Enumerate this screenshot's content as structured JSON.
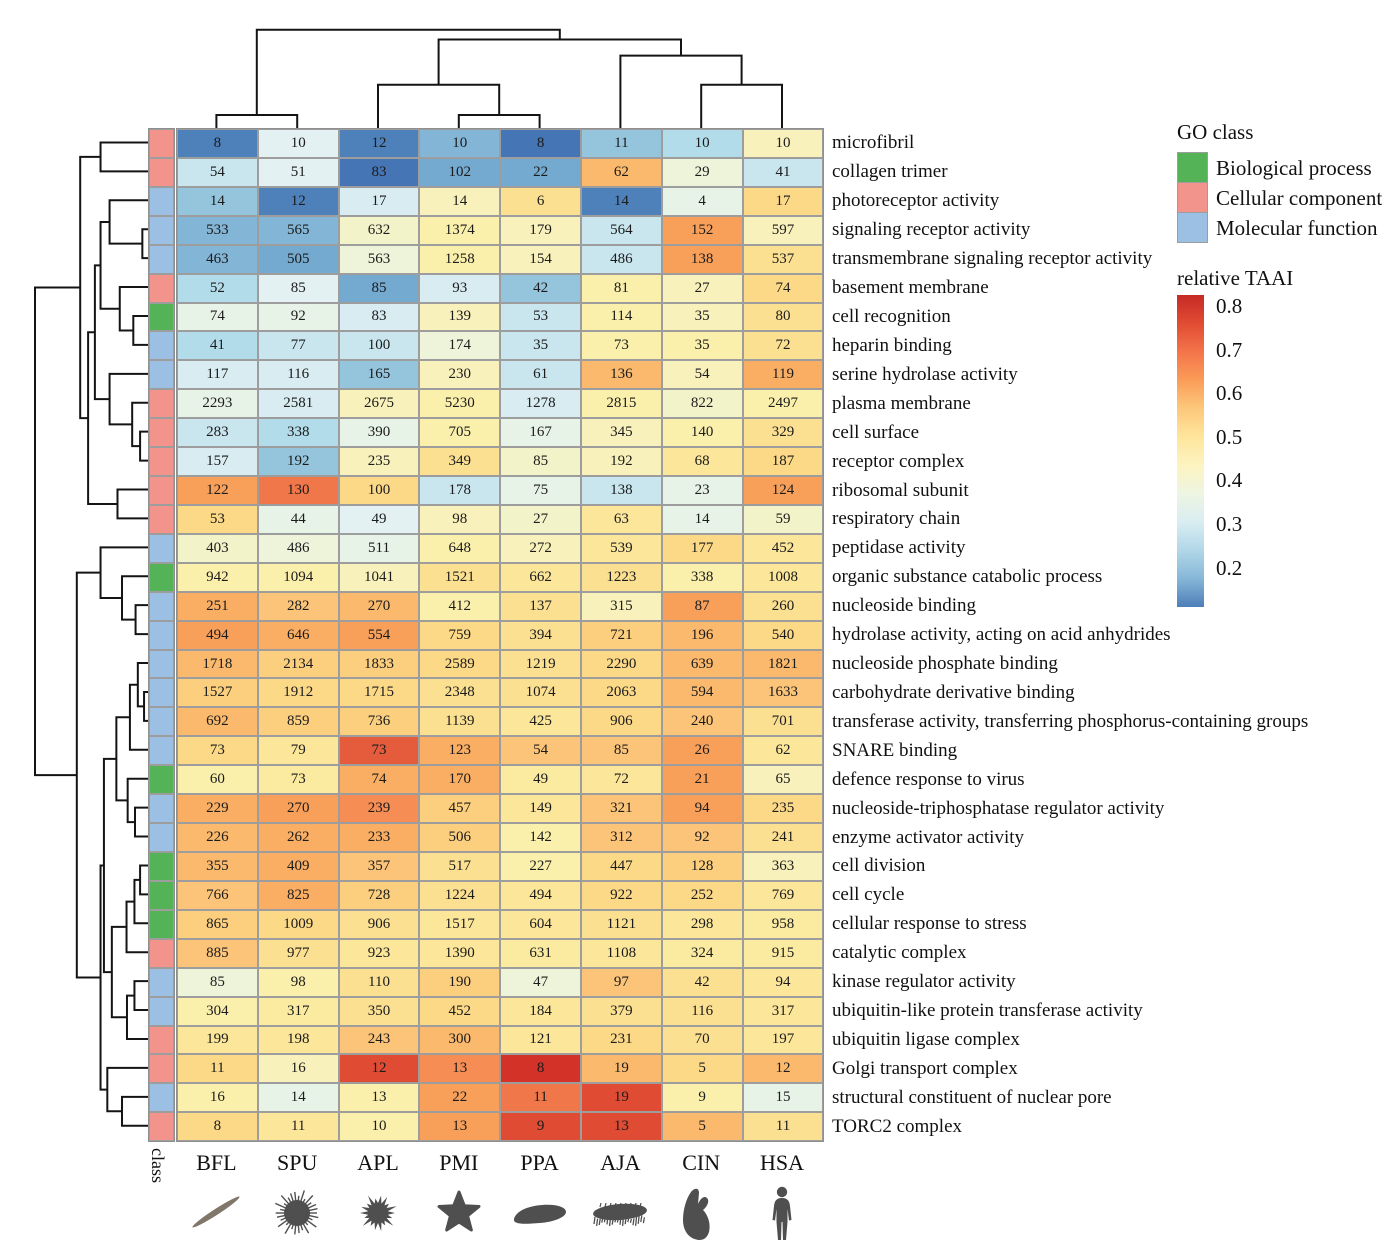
{
  "figure": {
    "background": "#ffffff"
  },
  "go_class_legend": {
    "title": "GO class",
    "items": [
      {
        "key": "BP",
        "label": "Biological process",
        "color": "#54b257"
      },
      {
        "key": "CC",
        "label": "Cellular component",
        "color": "#f2938c"
      },
      {
        "key": "MF",
        "label": "Molecular function",
        "color": "#9cc0e4"
      }
    ]
  },
  "colorbar": {
    "title": "relative TAAI",
    "ticks": [
      0.8,
      0.7,
      0.6,
      0.5,
      0.4,
      0.3,
      0.2
    ],
    "top_value": 0.825,
    "bottom_value": 0.11,
    "gradient": [
      "#c62a25",
      "#e04c33",
      "#f4744a",
      "#fa9c58",
      "#fdc87b",
      "#fee59c",
      "#fdf3c0",
      "#eef5e2",
      "#d9edf2",
      "#b1d7e8",
      "#86b7d8",
      "#4c7eb8"
    ]
  },
  "class_strip_label": "class",
  "chart_data": {
    "type": "heatmap",
    "columns": [
      "BFL",
      "SPU",
      "APL",
      "PMI",
      "PPA",
      "AJA",
      "CIN",
      "HSA"
    ],
    "column_silhouettes": [
      "lancelet",
      "sea-urchin",
      "crown-of-thorns-starfish",
      "starfish",
      "sea-cucumber",
      "spiky-sea-cucumber",
      "tunicate",
      "human"
    ],
    "rows": [
      {
        "label": "microfibril",
        "class": "CC",
        "values": [
          8,
          10,
          12,
          10,
          8,
          11,
          10,
          10
        ],
        "colors": [
          "#4e80ba",
          "#e4f1f3",
          "#4e80ba",
          "#83b5d6",
          "#4575b4",
          "#95c4dd",
          "#b3dcea",
          "#f9f1bb"
        ]
      },
      {
        "label": "collagen trimer",
        "class": "CC",
        "values": [
          54,
          51,
          83,
          102,
          22,
          62,
          29,
          41
        ],
        "colors": [
          "#c9e6ef",
          "#e4f1f3",
          "#4575b4",
          "#74a9d0",
          "#74a9d0",
          "#fab96c",
          "#edf4da",
          "#c9e6ef"
        ]
      },
      {
        "label": "photoreceptor activity",
        "class": "MF",
        "values": [
          14,
          12,
          17,
          14,
          6,
          14,
          4,
          17
        ],
        "colors": [
          "#95c4dd",
          "#4e80ba",
          "#d8ecf2",
          "#f9f1bb",
          "#fbe092",
          "#4e80ba",
          "#e7f3e6",
          "#fcd986"
        ]
      },
      {
        "label": "signaling receptor activity",
        "class": "MF",
        "values": [
          533,
          565,
          632,
          1374,
          179,
          564,
          152,
          597
        ],
        "colors": [
          "#83b5d6",
          "#83b5d6",
          "#f3f3ca",
          "#faf0ac",
          "#f9f1bb",
          "#c9e6ef",
          "#f8a05a",
          "#f9f1bb"
        ]
      },
      {
        "label": "transmembrane signaling receptor activity",
        "class": "MF",
        "values": [
          463,
          505,
          563,
          1258,
          154,
          486,
          138,
          537
        ],
        "colors": [
          "#83b5d6",
          "#74a9d0",
          "#edf4da",
          "#faf0ac",
          "#f9f1bb",
          "#c9e6ef",
          "#f8a05a",
          "#fbe092"
        ]
      },
      {
        "label": "basement membrane",
        "class": "CC",
        "values": [
          52,
          85,
          85,
          93,
          42,
          81,
          27,
          74
        ],
        "colors": [
          "#b3dcea",
          "#e4f1f3",
          "#74a9d0",
          "#d8ecf2",
          "#95c4dd",
          "#faf0ac",
          "#f9f1bb",
          "#fcd986"
        ]
      },
      {
        "label": "cell recognition",
        "class": "BP",
        "values": [
          74,
          92,
          83,
          139,
          53,
          114,
          35,
          80
        ],
        "colors": [
          "#e7f3e6",
          "#e7f3e6",
          "#d8ecf2",
          "#f9f1bb",
          "#c9e6ef",
          "#faf0ac",
          "#f9f1bb",
          "#fbe092"
        ]
      },
      {
        "label": "heparin binding",
        "class": "MF",
        "values": [
          41,
          77,
          100,
          174,
          35,
          73,
          35,
          72
        ],
        "colors": [
          "#b3dcea",
          "#c9e6ef",
          "#c9e6ef",
          "#edf4da",
          "#c9e6ef",
          "#faf0ac",
          "#faf0ac",
          "#fbe092"
        ]
      },
      {
        "label": "serine hydrolase activity",
        "class": "MF",
        "values": [
          117,
          116,
          165,
          230,
          61,
          136,
          54,
          119
        ],
        "colors": [
          "#d8ecf2",
          "#d8ecf2",
          "#95c4dd",
          "#f9f1bb",
          "#c9e6ef",
          "#fab96c",
          "#f9f1bb",
          "#f9ae63"
        ]
      },
      {
        "label": "plasma membrane",
        "class": "CC",
        "values": [
          2293,
          2581,
          2675,
          5230,
          1278,
          2815,
          822,
          2497
        ],
        "colors": [
          "#e7f3e6",
          "#d8ecf2",
          "#f9f1bb",
          "#faf0ac",
          "#d8ecf2",
          "#faf0ac",
          "#f3f3ca",
          "#faf0ac"
        ]
      },
      {
        "label": "cell surface",
        "class": "CC",
        "values": [
          283,
          338,
          390,
          705,
          167,
          345,
          140,
          329
        ],
        "colors": [
          "#c9e6ef",
          "#b3dcea",
          "#e7f3e6",
          "#faf0ac",
          "#e7f3e6",
          "#f9f1bb",
          "#faf0ac",
          "#fbe092"
        ]
      },
      {
        "label": "receptor complex",
        "class": "CC",
        "values": [
          157,
          192,
          235,
          349,
          85,
          192,
          68,
          187
        ],
        "colors": [
          "#d8ecf2",
          "#95c4dd",
          "#f9f1bb",
          "#fbe092",
          "#f3f3ca",
          "#f9f1bb",
          "#fbe69a",
          "#fcd986"
        ]
      },
      {
        "label": "ribosomal subunit",
        "class": "CC",
        "values": [
          122,
          130,
          100,
          178,
          75,
          138,
          23,
          124
        ],
        "colors": [
          "#f8a05a",
          "#f0774a",
          "#fcd986",
          "#c9e6ef",
          "#e7f3e6",
          "#c9e6ef",
          "#e7f3e6",
          "#f8a05a"
        ]
      },
      {
        "label": "respiratory chain",
        "class": "CC",
        "values": [
          53,
          44,
          49,
          98,
          27,
          63,
          14,
          59
        ],
        "colors": [
          "#fcd986",
          "#e7f3e6",
          "#e4f1f3",
          "#f9f1bb",
          "#f3f3ca",
          "#fbe69a",
          "#e7f3e6",
          "#f3f3ca"
        ]
      },
      {
        "label": "peptidase activity",
        "class": "MF",
        "values": [
          403,
          486,
          511,
          648,
          272,
          539,
          177,
          452
        ],
        "colors": [
          "#f3f3ca",
          "#edf4da",
          "#e7f3e6",
          "#faf0ac",
          "#f9f1bb",
          "#fbe69a",
          "#fcd986",
          "#fbe69a"
        ]
      },
      {
        "label": "organic substance catabolic process",
        "class": "BP",
        "values": [
          942,
          1094,
          1041,
          1521,
          662,
          1223,
          338,
          1008
        ],
        "colors": [
          "#faf0ac",
          "#faf0ac",
          "#f9f1bb",
          "#fbe092",
          "#fbe69a",
          "#fbe092",
          "#faf0ac",
          "#fbe69a"
        ]
      },
      {
        "label": "nucleoside binding",
        "class": "MF",
        "values": [
          251,
          282,
          270,
          412,
          137,
          315,
          87,
          260
        ],
        "colors": [
          "#f9ae63",
          "#fcc478",
          "#fab96c",
          "#faf0ac",
          "#fbe092",
          "#f9f1bb",
          "#f8a05a",
          "#fbe092"
        ]
      },
      {
        "label": "hydrolase activity, acting on acid anhydrides",
        "class": "MF",
        "values": [
          494,
          646,
          554,
          759,
          394,
          721,
          196,
          540
        ],
        "colors": [
          "#f8a05a",
          "#f9ae63",
          "#f8a05a",
          "#fcd986",
          "#fbe092",
          "#fccf7e",
          "#fab96c",
          "#fcd986"
        ]
      },
      {
        "label": "nucleoside phosphate binding",
        "class": "MF",
        "values": [
          1718,
          2134,
          1833,
          2589,
          1219,
          2290,
          639,
          1821
        ],
        "colors": [
          "#fab96c",
          "#fccf7e",
          "#fccf7e",
          "#fcd986",
          "#fbe092",
          "#fcd986",
          "#fab96c",
          "#fab96c"
        ]
      },
      {
        "label": "carbohydrate derivative binding",
        "class": "MF",
        "values": [
          1527,
          1912,
          1715,
          2348,
          1074,
          2063,
          594,
          1633
        ],
        "colors": [
          "#fccf7e",
          "#fcd986",
          "#fcd986",
          "#fbe092",
          "#fbe092",
          "#fcd986",
          "#fab96c",
          "#fcc478"
        ]
      },
      {
        "label": "transferase activity, transferring phosphorus-containing groups",
        "class": "MF",
        "values": [
          692,
          859,
          736,
          1139,
          425,
          906,
          240,
          701
        ],
        "colors": [
          "#fab96c",
          "#fccf7e",
          "#fccf7e",
          "#fbe092",
          "#fbe69a",
          "#fcd986",
          "#fcc478",
          "#fbe092"
        ]
      },
      {
        "label": "SNARE binding",
        "class": "MF",
        "values": [
          73,
          79,
          73,
          123,
          54,
          85,
          26,
          62
        ],
        "colors": [
          "#fcd986",
          "#fbe69a",
          "#e55c3c",
          "#f9ae63",
          "#fcc478",
          "#fcc478",
          "#f8a05a",
          "#fbe69a"
        ]
      },
      {
        "label": "defence response to virus",
        "class": "BP",
        "values": [
          60,
          73,
          74,
          170,
          49,
          72,
          21,
          65
        ],
        "colors": [
          "#faf0ac",
          "#fbeba1",
          "#f9ae63",
          "#f9ae63",
          "#fbeba1",
          "#fbe69a",
          "#f8a05a",
          "#f9f1bb"
        ]
      },
      {
        "label": "nucleoside-triphosphatase regulator activity",
        "class": "MF",
        "values": [
          229,
          270,
          239,
          457,
          149,
          321,
          94,
          235
        ],
        "colors": [
          "#f9ae63",
          "#f8a05a",
          "#f58d54",
          "#fccf7e",
          "#fbe69a",
          "#fcc478",
          "#f8a05a",
          "#fcd986"
        ]
      },
      {
        "label": "enzyme activator activity",
        "class": "MF",
        "values": [
          226,
          262,
          233,
          506,
          142,
          312,
          92,
          241
        ],
        "colors": [
          "#fab96c",
          "#f9ae63",
          "#f9ae63",
          "#fccf7e",
          "#faf0ac",
          "#fcc478",
          "#fcc478",
          "#fbe092"
        ]
      },
      {
        "label": "cell division",
        "class": "BP",
        "values": [
          355,
          409,
          357,
          517,
          227,
          447,
          128,
          363
        ],
        "colors": [
          "#fab96c",
          "#f9ae63",
          "#fcc478",
          "#fbe092",
          "#faf0ac",
          "#fcd986",
          "#fccf7e",
          "#f9f1bb"
        ]
      },
      {
        "label": "cell cycle",
        "class": "BP",
        "values": [
          766,
          825,
          728,
          1224,
          494,
          922,
          252,
          769
        ],
        "colors": [
          "#fcc478",
          "#f9ae63",
          "#fccf7e",
          "#fbe092",
          "#fbe69a",
          "#fcd986",
          "#fcd986",
          "#fbe69a"
        ]
      },
      {
        "label": "cellular response to stress",
        "class": "BP",
        "values": [
          865,
          1009,
          906,
          1517,
          604,
          1121,
          298,
          958
        ],
        "colors": [
          "#fccf7e",
          "#fcd986",
          "#fbe092",
          "#fbe69a",
          "#fbe69a",
          "#fbe092",
          "#fbe69a",
          "#fbeba1"
        ]
      },
      {
        "label": "catalytic complex",
        "class": "CC",
        "values": [
          885,
          977,
          923,
          1390,
          631,
          1108,
          324,
          915
        ],
        "colors": [
          "#fcc478",
          "#fbe092",
          "#fbe69a",
          "#fbe69a",
          "#fbeba1",
          "#fbe69a",
          "#fbeba1",
          "#fbeba1"
        ]
      },
      {
        "label": "kinase regulator activity",
        "class": "MF",
        "values": [
          85,
          98,
          110,
          190,
          47,
          97,
          42,
          94
        ],
        "colors": [
          "#edf4da",
          "#faf0ac",
          "#fbe092",
          "#fccf7e",
          "#edf4da",
          "#fcc478",
          "#fbe092",
          "#fbe69a"
        ]
      },
      {
        "label": "ubiquitin-like protein transferase activity",
        "class": "MF",
        "values": [
          304,
          317,
          350,
          452,
          184,
          379,
          116,
          317
        ],
        "colors": [
          "#faf0ac",
          "#fbeba1",
          "#fbe092",
          "#fcd986",
          "#fbe69a",
          "#fbe092",
          "#fbe092",
          "#fbe69a"
        ]
      },
      {
        "label": "ubiquitin ligase complex",
        "class": "CC",
        "values": [
          199,
          198,
          243,
          300,
          121,
          231,
          70,
          197
        ],
        "colors": [
          "#fbe69a",
          "#fbe69a",
          "#fcc478",
          "#fab96c",
          "#fbe69a",
          "#fcd986",
          "#fbe092",
          "#fbe69a"
        ]
      },
      {
        "label": "Golgi transport complex",
        "class": "CC",
        "values": [
          11,
          16,
          12,
          13,
          8,
          19,
          5,
          12
        ],
        "colors": [
          "#fcd986",
          "#f9f1bb",
          "#e04b34",
          "#f58d54",
          "#d23227",
          "#fab96c",
          "#fcd986",
          "#fab96c"
        ]
      },
      {
        "label": "structural constituent of nuclear pore",
        "class": "MF",
        "values": [
          16,
          14,
          13,
          22,
          11,
          19,
          9,
          15
        ],
        "colors": [
          "#faf0ac",
          "#e7f3e6",
          "#faf0ac",
          "#f8a05a",
          "#f0774a",
          "#e04b34",
          "#faf0ac",
          "#e7f3e6"
        ]
      },
      {
        "label": "TORC2 complex",
        "class": "CC",
        "values": [
          8,
          11,
          10,
          13,
          9,
          13,
          5,
          11
        ],
        "colors": [
          "#fcd986",
          "#fbe69a",
          "#faf0ac",
          "#f8a05a",
          "#e04b34",
          "#e04b34",
          "#fab96c",
          "#fbe092"
        ]
      }
    ],
    "col_dendrogram": [
      [
        "BFL",
        "SPU",
        0.12
      ],
      [
        "PMI",
        "PPA",
        0.12
      ],
      [
        "APL",
        "C1",
        0.4
      ],
      [
        "CIN",
        "HSA",
        0.4
      ],
      [
        "AJA",
        "C3",
        0.67
      ],
      [
        "C2",
        "C4",
        0.82
      ],
      [
        "C0",
        "C5",
        0.91
      ]
    ],
    "row_dendrogram": [
      [
        "L0",
        "L1",
        0.42
      ],
      [
        "L3",
        "L4",
        0.05
      ],
      [
        "L2",
        "M1",
        0.34
      ],
      [
        "L6",
        "L7",
        0.13
      ],
      [
        "L5",
        "M3",
        0.25
      ],
      [
        "M2",
        "M4",
        0.42
      ],
      [
        "L10",
        "L11",
        0.07
      ],
      [
        "L9",
        "M6",
        0.14
      ],
      [
        "L8",
        "M7",
        0.34
      ],
      [
        "M5",
        "M8",
        0.47
      ],
      [
        "L12",
        "L13",
        0.27
      ],
      [
        "M9",
        "M10",
        0.53
      ],
      [
        "M0",
        "M11",
        0.6
      ],
      [
        "L16",
        "L17",
        0.11
      ],
      [
        "L15",
        "M13",
        0.23
      ],
      [
        "L14",
        "M14",
        0.42
      ],
      [
        "L19",
        "L20",
        0.035
      ],
      [
        "L18",
        "M16",
        0.09
      ],
      [
        "M17",
        "L21",
        0.16
      ],
      [
        "L23",
        "L24",
        0.115
      ],
      [
        "L22",
        "M19",
        0.18
      ],
      [
        "M18",
        "M20",
        0.28
      ],
      [
        "L25",
        "L26",
        0.07
      ],
      [
        "M22",
        "L27",
        0.12
      ],
      [
        "M23",
        "L28",
        0.19
      ],
      [
        "L29",
        "L30",
        0.12
      ],
      [
        "M25",
        "L31",
        0.186
      ],
      [
        "M24",
        "M26",
        0.32
      ],
      [
        "M21",
        "M27",
        0.39
      ],
      [
        "L33",
        "L34",
        0.23
      ],
      [
        "L32",
        "M29",
        0.36
      ],
      [
        "M28",
        "M30",
        0.42
      ],
      [
        "M15",
        "M31",
        0.63
      ],
      [
        "M12",
        "M32",
        1.0
      ]
    ]
  }
}
